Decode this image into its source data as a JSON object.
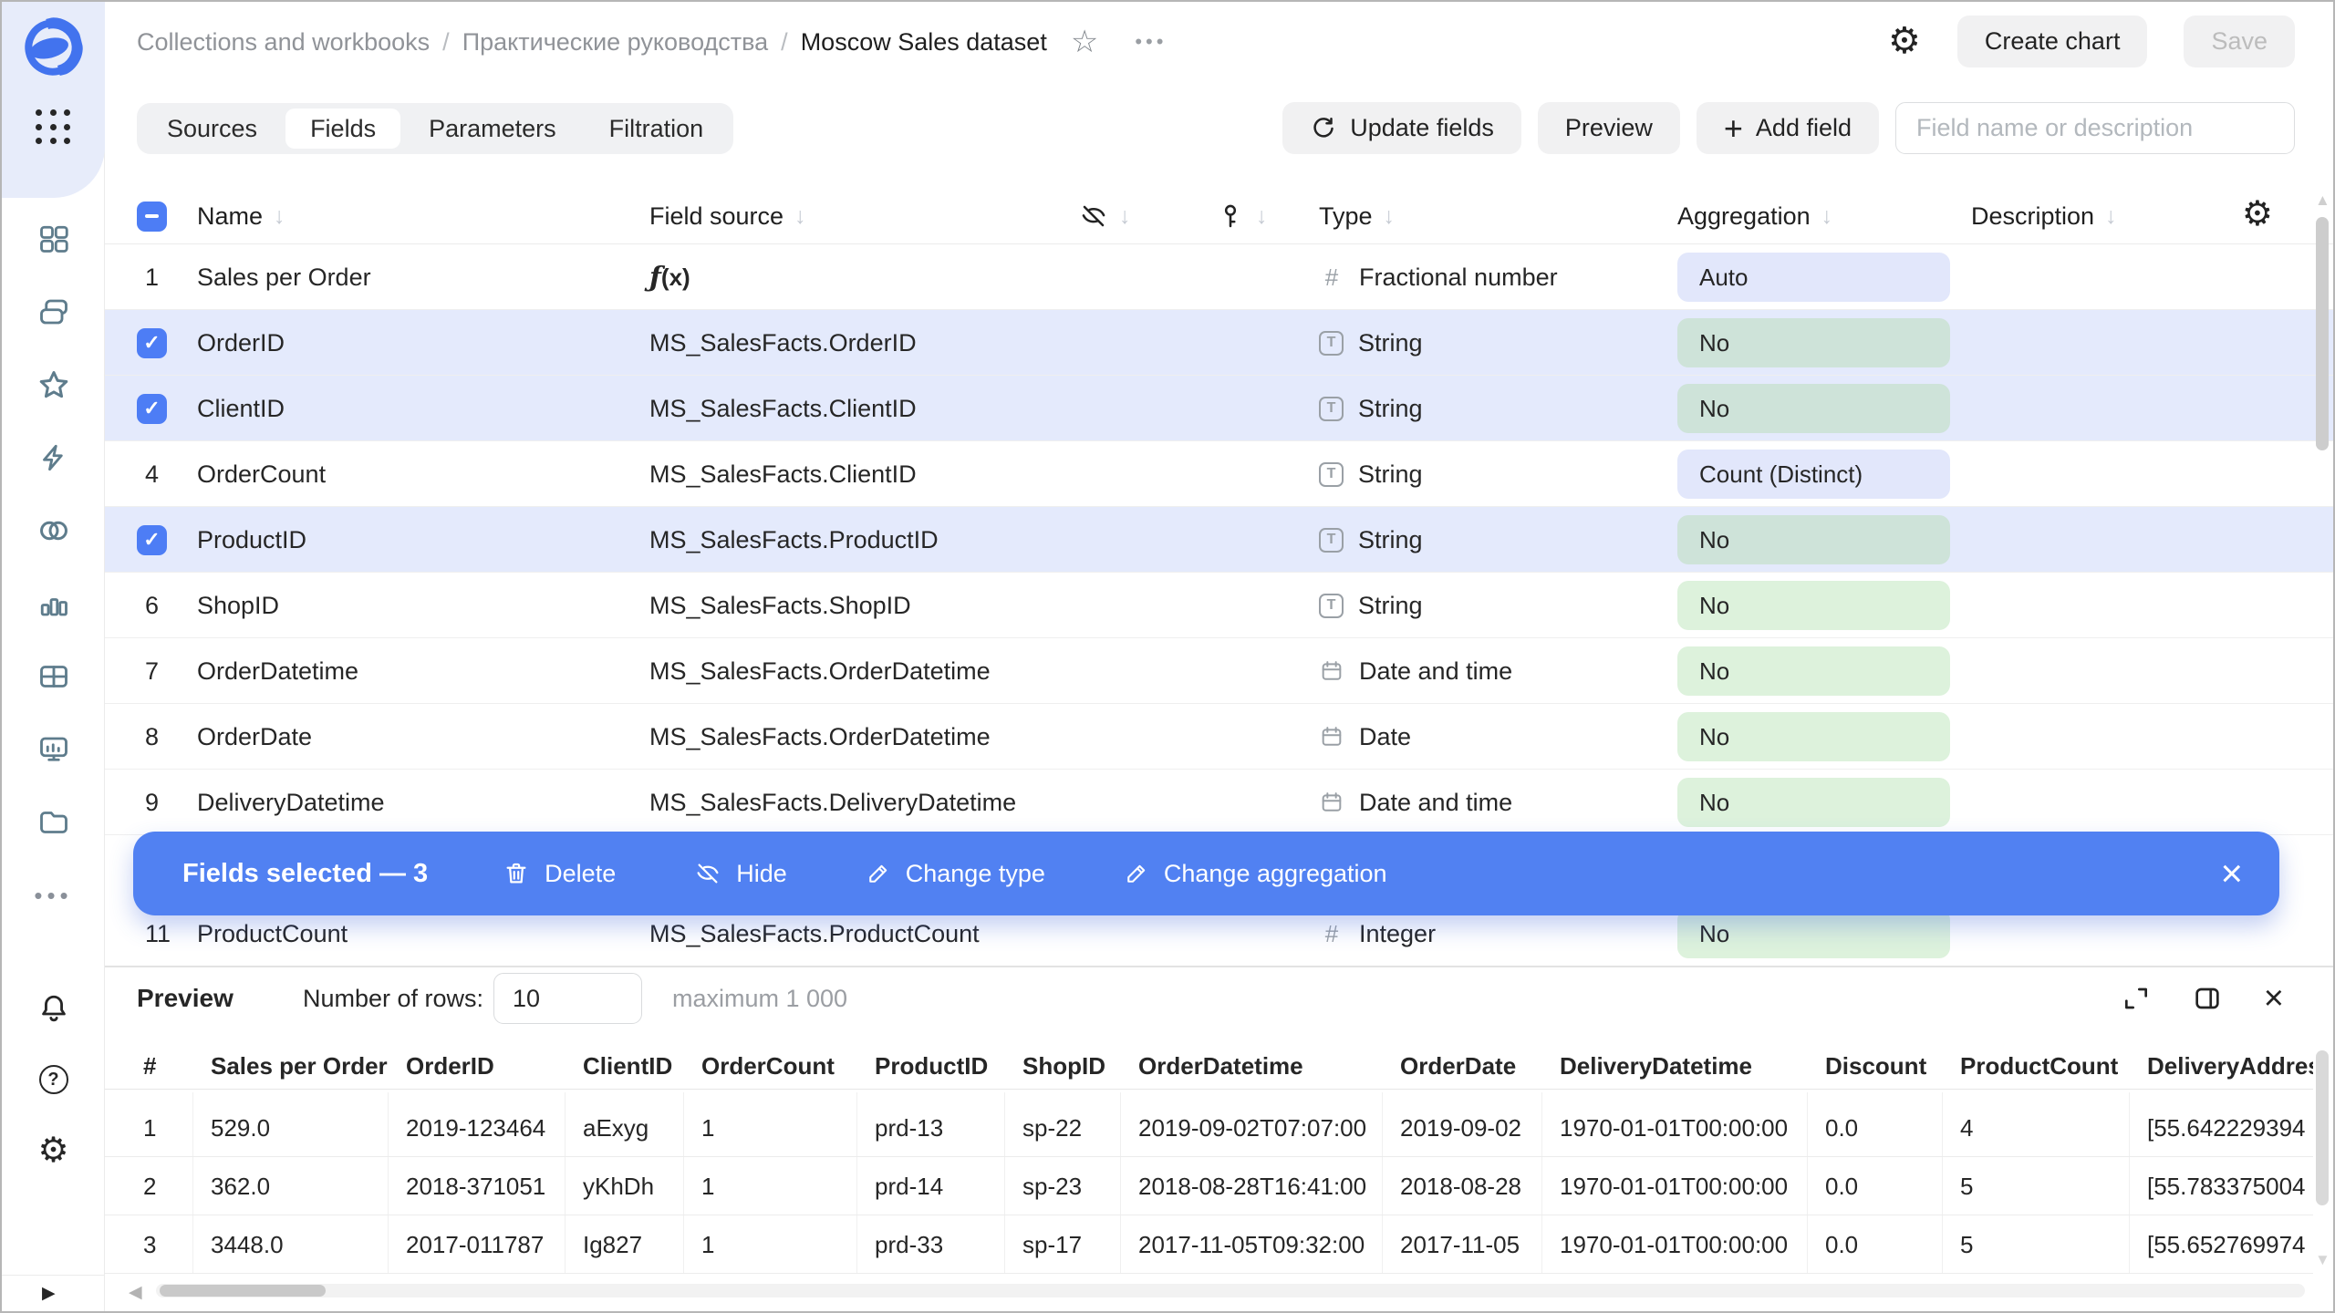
{
  "header": {
    "breadcrumb_items": [
      "Collections and workbooks",
      "Практические руководства"
    ],
    "breadcrumb_current": "Moscow Sales dataset",
    "separator": "/",
    "create_chart": "Create chart",
    "save": "Save"
  },
  "toolbar": {
    "tabs": [
      {
        "label": "Sources",
        "active": false
      },
      {
        "label": "Fields",
        "active": true
      },
      {
        "label": "Parameters",
        "active": false
      },
      {
        "label": "Filtration",
        "active": false
      }
    ],
    "update_fields": "Update fields",
    "preview": "Preview",
    "add_field": "Add field",
    "search_placeholder": "Field name or description"
  },
  "fields_table": {
    "headers": {
      "name": "Name",
      "source": "Field source",
      "type": "Type",
      "aggregation": "Aggregation",
      "description": "Description"
    },
    "rows": [
      {
        "n": "1",
        "selected": false,
        "name": "Sales per Order",
        "source": "",
        "formula": true,
        "type": "Fractional number",
        "type_icon": "number",
        "agg": "Auto",
        "agg_variant": "lavender"
      },
      {
        "n": "2",
        "selected": true,
        "name": "OrderID",
        "source": "MS_SalesFacts.OrderID",
        "formula": false,
        "type": "String",
        "type_icon": "string",
        "agg": "No",
        "agg_variant": "green-muted"
      },
      {
        "n": "3",
        "selected": true,
        "name": "ClientID",
        "source": "MS_SalesFacts.ClientID",
        "formula": false,
        "type": "String",
        "type_icon": "string",
        "agg": "No",
        "agg_variant": "green-muted"
      },
      {
        "n": "4",
        "selected": false,
        "name": "OrderCount",
        "source": "MS_SalesFacts.ClientID",
        "formula": false,
        "type": "String",
        "type_icon": "string",
        "agg": "Count (Distinct)",
        "agg_variant": "lavender"
      },
      {
        "n": "5",
        "selected": true,
        "name": "ProductID",
        "source": "MS_SalesFacts.ProductID",
        "formula": false,
        "type": "String",
        "type_icon": "string",
        "agg": "No",
        "agg_variant": "green-muted"
      },
      {
        "n": "6",
        "selected": false,
        "name": "ShopID",
        "source": "MS_SalesFacts.ShopID",
        "formula": false,
        "type": "String",
        "type_icon": "string",
        "agg": "No",
        "agg_variant": "green"
      },
      {
        "n": "7",
        "selected": false,
        "name": "OrderDatetime",
        "source": "MS_SalesFacts.OrderDatetime",
        "formula": false,
        "type": "Date and time",
        "type_icon": "date",
        "agg": "No",
        "agg_variant": "green"
      },
      {
        "n": "8",
        "selected": false,
        "name": "OrderDate",
        "source": "MS_SalesFacts.OrderDatetime",
        "formula": false,
        "type": "Date",
        "type_icon": "date",
        "agg": "No",
        "agg_variant": "green"
      },
      {
        "n": "9",
        "selected": false,
        "name": "DeliveryDatetime",
        "source": "MS_SalesFacts.DeliveryDatetime",
        "formula": false,
        "type": "Date and time",
        "type_icon": "date",
        "agg": "No",
        "agg_variant": "green"
      },
      {
        "n": "11",
        "selected": false,
        "name": "ProductCount",
        "source": "MS_SalesFacts.ProductCount",
        "formula": false,
        "type": "Integer",
        "type_icon": "number",
        "agg": "No",
        "agg_variant": "green"
      }
    ]
  },
  "selection_bar": {
    "label": "Fields selected — 3",
    "actions": [
      {
        "label": "Delete",
        "icon": "trash"
      },
      {
        "label": "Hide",
        "icon": "eye-off"
      },
      {
        "label": "Change type",
        "icon": "pencil"
      },
      {
        "label": "Change aggregation",
        "icon": "pencil"
      }
    ]
  },
  "preview": {
    "title": "Preview",
    "rows_label": "Number of rows:",
    "rows_value": "10",
    "max_hint": "maximum 1 000",
    "headers": [
      "#",
      "Sales per Order",
      "OrderID",
      "ClientID",
      "OrderCount",
      "ProductID",
      "ShopID",
      "OrderDatetime",
      "OrderDate",
      "DeliveryDatetime",
      "Discount",
      "ProductCount",
      "DeliveryAddress"
    ],
    "rows": [
      [
        "1",
        "529.0",
        "2019-123464",
        "aExyg",
        "1",
        "prd-13",
        "sp-22",
        "2019-09-02T07:07:00",
        "2019-09-02",
        "1970-01-01T00:00:00",
        "0.0",
        "4",
        "[55.642229394"
      ],
      [
        "2",
        "362.0",
        "2018-371051",
        "yKhDh",
        "1",
        "prd-14",
        "sp-23",
        "2018-08-28T16:41:00",
        "2018-08-28",
        "1970-01-01T00:00:00",
        "0.0",
        "5",
        "[55.783375004"
      ],
      [
        "3",
        "3448.0",
        "2017-011787",
        "Ig827",
        "1",
        "prd-33",
        "sp-17",
        "2017-11-05T09:32:00",
        "2017-11-05",
        "1970-01-01T00:00:00",
        "0.0",
        "5",
        "[55.652769974"
      ]
    ]
  },
  "colors": {
    "accent": "#4d7df5",
    "selection_bar": "#5181f2",
    "row_selected": "#e4eafc",
    "badge_lavender": "#e2e7fb",
    "badge_green": "#ddf2dc",
    "badge_green_muted": "#cee3d9",
    "sidebar_top": "#e7ecfa"
  }
}
